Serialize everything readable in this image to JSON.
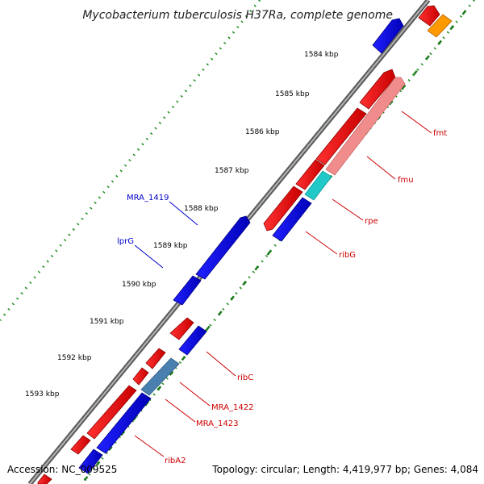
{
  "header": {
    "title": "Mycobacterium tuberculosis H37Ra, complete genome"
  },
  "footer": {
    "accession": "Accession: NC_009525",
    "summary": "Topology: circular; Length: 4,419,977 bp; Genes: 4,084"
  },
  "ticks": [
    {
      "label": "1584 kbp"
    },
    {
      "label": "1585 kbp"
    },
    {
      "label": "1586 kbp"
    },
    {
      "label": "1587 kbp"
    },
    {
      "label": "1588 kbp"
    },
    {
      "label": "1589 kbp"
    },
    {
      "label": "1590 kbp"
    },
    {
      "label": "1591 kbp"
    },
    {
      "label": "1592 kbp"
    },
    {
      "label": "1593 kbp"
    }
  ],
  "gene_labels": {
    "fmt": "fmt",
    "fmu": "fmu",
    "rpe": "rpe",
    "ribG": "ribG",
    "ribC": "ribC",
    "mra1422": "MRA_1422",
    "mra1423": "MRA_1423",
    "ribA2": "ribA2",
    "mra1419": "MRA_1419",
    "lprG": "lprG"
  },
  "colors": {
    "forward_cds": "#ee0000",
    "reverse_cds": "#0000ee",
    "fmu": "#f08c8c",
    "rpe": "#20c8c8",
    "mra1422": "#4a80b0",
    "orange": "#ff9900",
    "backbone": "#8c8c8c",
    "tick": "#1a7a1a",
    "label_red": "#cc0000",
    "label_blue": "#0000cc"
  }
}
